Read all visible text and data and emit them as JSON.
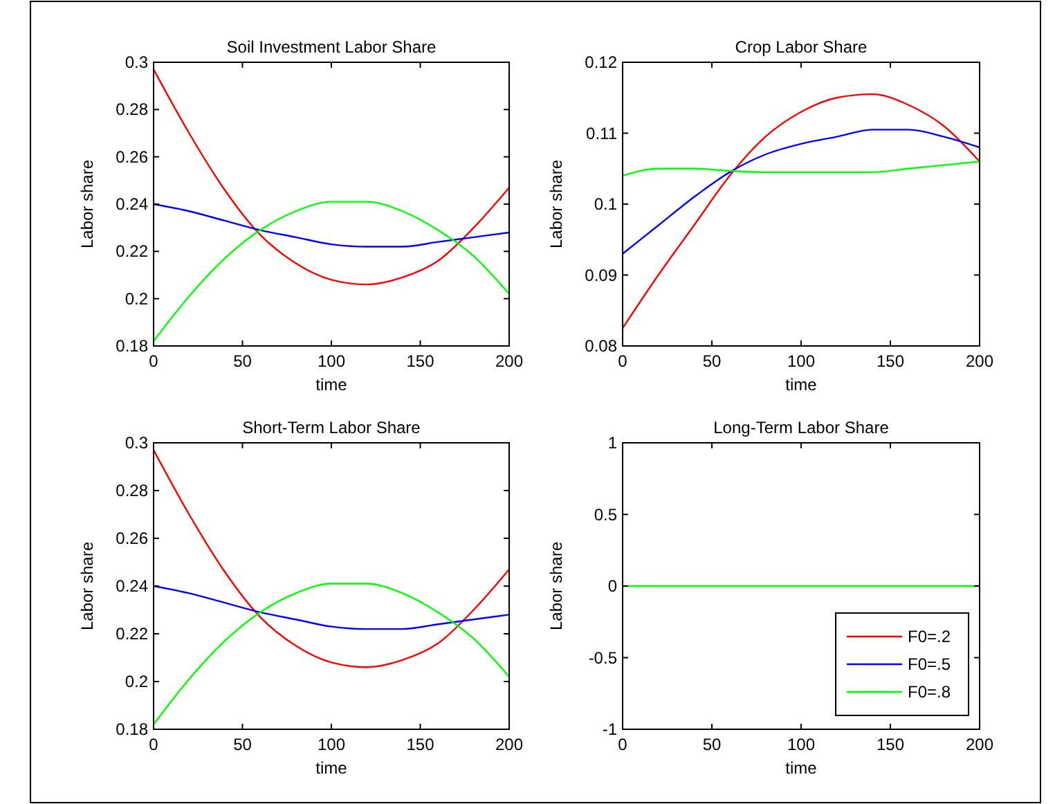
{
  "chart_data": [
    {
      "type": "line",
      "title": "Soil Investment Labor Share",
      "xlabel": "time",
      "ylabel": "Labor share",
      "x": [
        0,
        20,
        40,
        60,
        80,
        100,
        120,
        140,
        160,
        180,
        200
      ],
      "xlim": [
        0,
        200
      ],
      "xticks": [
        0,
        50,
        100,
        150,
        200
      ],
      "ylim": [
        0.18,
        0.3
      ],
      "yticks": [
        0.18,
        0.2,
        0.22,
        0.24,
        0.26,
        0.28,
        0.3
      ],
      "grid": false,
      "legend": false,
      "series": [
        {
          "color": "#ff0000",
          "values": [
            0.297,
            0.27,
            0.246,
            0.227,
            0.215,
            0.208,
            0.206,
            0.209,
            0.216,
            0.23,
            0.247
          ]
        },
        {
          "color": "#0000ff",
          "values": [
            0.24,
            0.237,
            0.233,
            0.229,
            0.226,
            0.223,
            0.222,
            0.222,
            0.224,
            0.226,
            0.228
          ]
        },
        {
          "color": "#00ff00",
          "values": [
            0.182,
            0.201,
            0.217,
            0.229,
            0.237,
            0.241,
            0.241,
            0.237,
            0.229,
            0.218,
            0.202
          ]
        }
      ]
    },
    {
      "type": "line",
      "title": "Crop Labor Share",
      "xlabel": "time",
      "ylabel": "Labor share",
      "x": [
        0,
        20,
        40,
        60,
        80,
        100,
        120,
        140,
        160,
        180,
        200
      ],
      "xlim": [
        0,
        200
      ],
      "xticks": [
        0,
        50,
        100,
        150,
        200
      ],
      "ylim": [
        0.08,
        0.12
      ],
      "yticks": [
        0.08,
        0.09,
        0.1,
        0.11,
        0.12
      ],
      "grid": false,
      "legend": false,
      "series": [
        {
          "color": "#ff0000",
          "values": [
            0.0825,
            0.09,
            0.097,
            0.104,
            0.1095,
            0.113,
            0.115,
            0.1155,
            0.114,
            0.111,
            0.106
          ]
        },
        {
          "color": "#0000ff",
          "values": [
            0.093,
            0.097,
            0.101,
            0.1045,
            0.107,
            0.1085,
            0.1095,
            0.1105,
            0.1105,
            0.1095,
            0.108
          ]
        },
        {
          "color": "#00ff00",
          "values": [
            0.104,
            0.105,
            0.105,
            0.1047,
            0.1045,
            0.1045,
            0.1045,
            0.1045,
            0.105,
            0.1055,
            0.106
          ]
        }
      ]
    },
    {
      "type": "line",
      "title": "Short-Term Labor Share",
      "xlabel": "time",
      "ylabel": "Labor share",
      "x": [
        0,
        20,
        40,
        60,
        80,
        100,
        120,
        140,
        160,
        180,
        200
      ],
      "xlim": [
        0,
        200
      ],
      "xticks": [
        0,
        50,
        100,
        150,
        200
      ],
      "ylim": [
        0.18,
        0.3
      ],
      "yticks": [
        0.18,
        0.2,
        0.22,
        0.24,
        0.26,
        0.28,
        0.3
      ],
      "grid": false,
      "legend": false,
      "series": [
        {
          "color": "#ff0000",
          "values": [
            0.297,
            0.27,
            0.246,
            0.227,
            0.215,
            0.208,
            0.206,
            0.209,
            0.216,
            0.23,
            0.247
          ]
        },
        {
          "color": "#0000ff",
          "values": [
            0.24,
            0.237,
            0.233,
            0.229,
            0.226,
            0.223,
            0.222,
            0.222,
            0.224,
            0.226,
            0.228
          ]
        },
        {
          "color": "#00ff00",
          "values": [
            0.182,
            0.201,
            0.217,
            0.229,
            0.237,
            0.241,
            0.241,
            0.237,
            0.229,
            0.218,
            0.202
          ]
        }
      ]
    },
    {
      "type": "line",
      "title": "Long-Term Labor Share",
      "xlabel": "time",
      "ylabel": "Labor share",
      "x": [
        0,
        200
      ],
      "xlim": [
        0,
        200
      ],
      "xticks": [
        0,
        50,
        100,
        150,
        200
      ],
      "ylim": [
        -1,
        1
      ],
      "yticks": [
        -1,
        -0.5,
        0,
        0.5,
        1
      ],
      "grid": false,
      "legend": "bottom right",
      "series": [
        {
          "name": "F0=.2",
          "color": "#ff0000",
          "values": [
            null,
            null
          ]
        },
        {
          "name": "F0=.5",
          "color": "#0000ff",
          "values": [
            null,
            null
          ]
        },
        {
          "name": "F0=.8",
          "color": "#00ff00",
          "values": [
            0,
            0
          ]
        }
      ]
    }
  ]
}
